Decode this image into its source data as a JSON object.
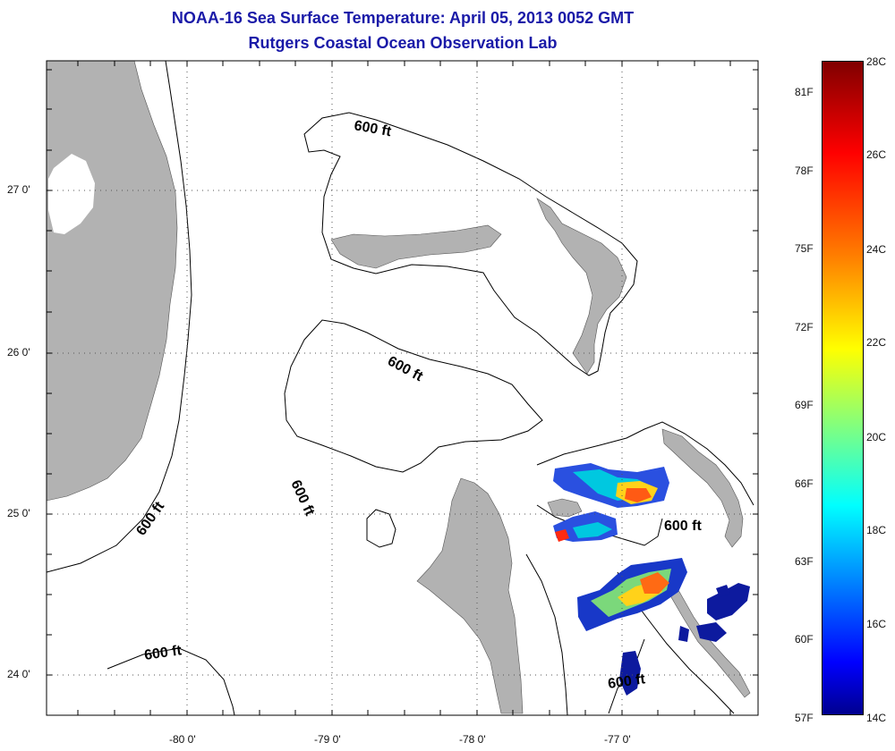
{
  "title": {
    "line1": "NOAA-16 Sea Surface Temperature:  April 05, 2013 0052 GMT",
    "line2": "Rutgers Coastal Ocean Observation Lab"
  },
  "map": {
    "lat_ticks": [
      "27 0'",
      "26 0'",
      "25 0'",
      "24 0'"
    ],
    "lon_ticks": [
      "-80 0'",
      "-79 0'",
      "-78 0'",
      "-77 0'"
    ],
    "contour_label": "600 ft",
    "land_color": "#b2b2b2",
    "ocean_color": "#ffffff"
  },
  "colorbar": {
    "celsius_labels": [
      "28C",
      "26C",
      "24C",
      "22C",
      "20C",
      "18C",
      "16C",
      "14C"
    ],
    "fahrenheit_labels": [
      "81F",
      "78F",
      "75F",
      "72F",
      "69F",
      "66F",
      "63F",
      "60F",
      "57F"
    ],
    "colormap": "jet",
    "min_c": 14,
    "max_c": 28
  }
}
